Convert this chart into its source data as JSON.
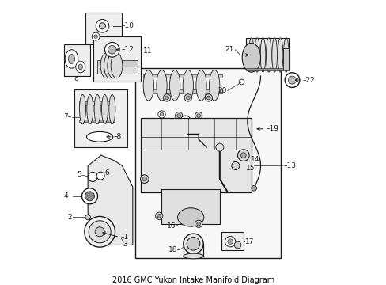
{
  "title": "2016 GMC Yukon Intake Manifold Diagram",
  "bg_color": "#ffffff",
  "line_color": "#1a1a1a",
  "box_color": "#f0f0f0",
  "label_color": "#000000"
}
